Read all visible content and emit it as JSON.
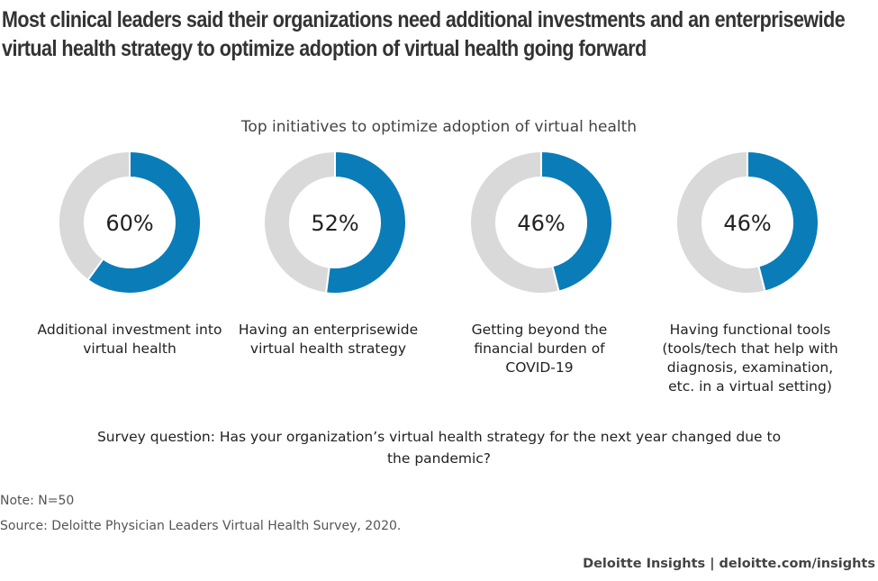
{
  "title": "Most clinical leaders said their organizations need additional investments and an enterprisewide virtual health strategy to optimize adoption of virtual health going forward",
  "chart_data": {
    "type": "pie",
    "subtitle": "Top initiatives to optimize adoption of virtual health",
    "items": [
      {
        "label": "Additional investment into virtual health",
        "value": 60,
        "value_label": "60%"
      },
      {
        "label": "Having an enterprisewide virtual health strategy",
        "value": 52,
        "value_label": "52%"
      },
      {
        "label": "Getting beyond the financial burden of COVID-19",
        "value": 46,
        "value_label": "46%"
      },
      {
        "label": "Having functional tools (tools/tech that help with diagnosis, examination, etc. in a virtual setting)",
        "value": 46,
        "value_label": "46%"
      }
    ],
    "colors": {
      "value": "#0a7db8",
      "remainder": "#d9d9d9"
    }
  },
  "survey_question": "Survey question: Has your organization’s virtual health strategy for the next year changed due to the pandemic?",
  "note": "Note: N=50",
  "source": "Source: Deloitte Physician Leaders Virtual Health Survey, 2020.",
  "footer": "Deloitte Insights | deloitte.com/insights"
}
